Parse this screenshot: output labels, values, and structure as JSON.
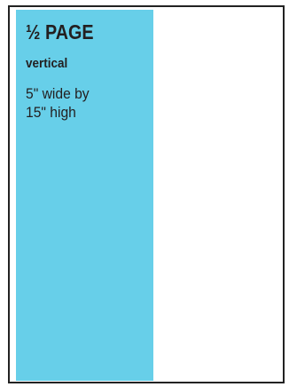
{
  "ad_size": {
    "title": "½ PAGE",
    "orientation": "vertical",
    "dimensions": "5\" wide by\n15\" high"
  },
  "colors": {
    "block_fill": "#67cfe9",
    "frame_border": "#222222",
    "page_background": "#ffffff",
    "text": "#231f20"
  }
}
